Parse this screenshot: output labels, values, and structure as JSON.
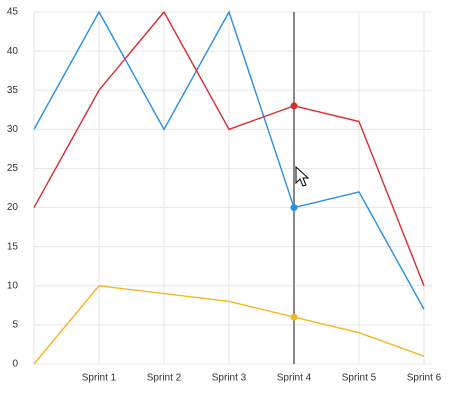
{
  "chart_data": {
    "type": "line",
    "categories": [
      null,
      "Sprint 1",
      "Sprint 2",
      "Sprint 3",
      "Sprint 4",
      "Sprint 5",
      "Sprint 6"
    ],
    "series": [
      {
        "color": "#2b8fe0",
        "values": [
          30,
          45,
          30,
          45,
          20,
          22,
          7
        ]
      },
      {
        "color": "#dc2b30",
        "values": [
          20,
          35,
          45,
          30,
          33,
          31,
          10
        ]
      },
      {
        "color": "#f4b722",
        "values": [
          0,
          10,
          9,
          8,
          6,
          4,
          1
        ]
      }
    ],
    "ylim": [
      0,
      45
    ],
    "yticks": [
      0,
      5,
      10,
      15,
      20,
      25,
      30,
      35,
      40,
      45
    ],
    "grid": true,
    "hover_index": 4
  }
}
